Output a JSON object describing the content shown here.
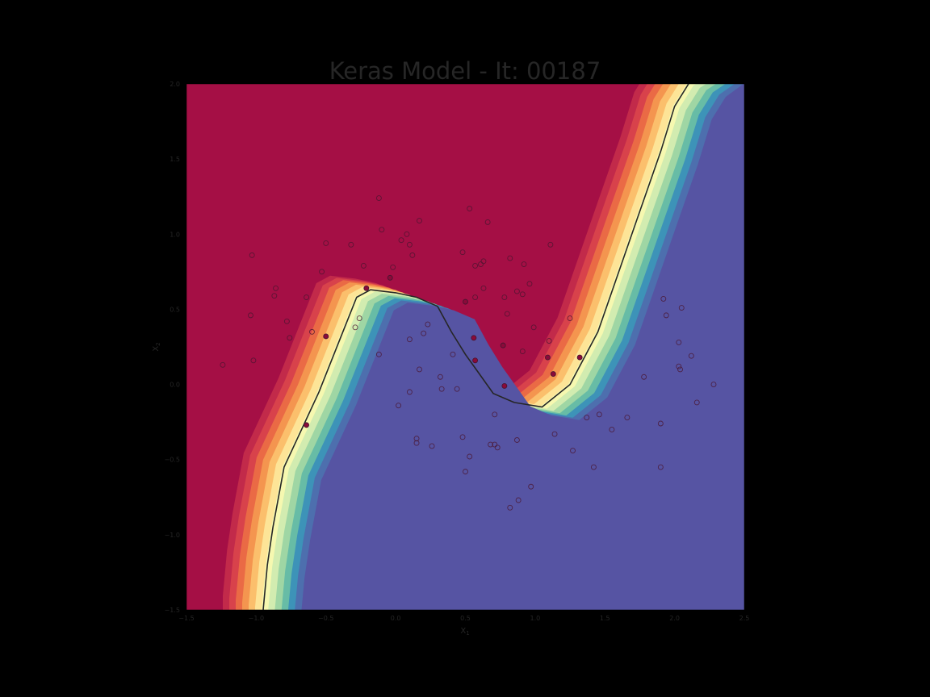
{
  "chart_data": {
    "type": "scatter",
    "title": "Keras Model - It: 00187",
    "xlabel": "X",
    "xlabel_sub": "1",
    "ylabel": "X",
    "ylabel_sub": "2",
    "xlim": [
      -1.5,
      2.5
    ],
    "ylim": [
      -1.5,
      2.0
    ],
    "xticks": [
      "−1.5",
      "−1.0",
      "−0.5",
      "0.0",
      "0.5",
      "1.0",
      "1.5",
      "2.0",
      "2.5"
    ],
    "xtick_values": [
      -1.5,
      -1.0,
      -0.5,
      0.0,
      0.5,
      1.0,
      1.5,
      2.0,
      2.5
    ],
    "yticks": [
      "−1.5",
      "−1.0",
      "−0.5",
      "0.0",
      "0.5",
      "1.0",
      "1.5",
      "2.0"
    ],
    "ytick_values": [
      -1.5,
      -1.0,
      -0.5,
      0.0,
      0.5,
      1.0,
      1.5,
      2.0
    ],
    "grid": false,
    "background_region": "decision-function contour, Spectral colormap (red = class 0, blue = class 1)",
    "colors": {
      "class0_region": "#a50f45",
      "class1_region": "#5654a3",
      "boundary": "#262626",
      "point_edge": "#4a1530",
      "point_fill": "#8b0a3a"
    },
    "decision_boundary": [
      [
        -0.95,
        -1.5
      ],
      [
        -0.92,
        -1.2
      ],
      [
        -0.88,
        -0.95
      ],
      [
        -0.84,
        -0.75
      ],
      [
        -0.8,
        -0.55
      ],
      [
        -0.7,
        -0.35
      ],
      [
        -0.55,
        -0.05
      ],
      [
        -0.4,
        0.3
      ],
      [
        -0.28,
        0.58
      ],
      [
        -0.18,
        0.63
      ],
      [
        0.0,
        0.61
      ],
      [
        0.15,
        0.58
      ],
      [
        0.3,
        0.52
      ],
      [
        0.4,
        0.35
      ],
      [
        0.5,
        0.2
      ],
      [
        0.6,
        0.07
      ],
      [
        0.7,
        -0.06
      ],
      [
        0.85,
        -0.12
      ],
      [
        1.05,
        -0.15
      ],
      [
        1.25,
        0.0
      ],
      [
        1.45,
        0.35
      ],
      [
        1.6,
        0.75
      ],
      [
        1.75,
        1.15
      ],
      [
        1.9,
        1.55
      ],
      [
        2.0,
        1.85
      ],
      [
        2.1,
        2.0
      ]
    ],
    "series": [
      {
        "values_open": [
          [
            -1.24,
            0.13
          ],
          [
            -1.03,
            0.86
          ],
          [
            -1.04,
            0.46
          ],
          [
            -1.02,
            0.16
          ],
          [
            -0.86,
            0.64
          ],
          [
            -0.87,
            0.59
          ],
          [
            -0.78,
            0.42
          ],
          [
            -0.76,
            0.31
          ],
          [
            -0.64,
            0.58
          ],
          [
            -0.6,
            0.35
          ],
          [
            -0.53,
            0.75
          ],
          [
            -0.5,
            0.94
          ],
          [
            -0.32,
            0.93
          ],
          [
            -0.29,
            0.38
          ],
          [
            -0.26,
            0.44
          ],
          [
            -0.23,
            0.79
          ],
          [
            -0.12,
            1.24
          ],
          [
            -0.1,
            1.03
          ],
          [
            -0.02,
            0.78
          ],
          [
            0.04,
            0.96
          ],
          [
            0.08,
            1.0
          ],
          [
            0.1,
            0.93
          ],
          [
            0.12,
            0.86
          ],
          [
            0.17,
            1.09
          ],
          [
            -0.12,
            0.2
          ],
          [
            0.1,
            0.3
          ],
          [
            0.2,
            0.34
          ],
          [
            0.23,
            0.4
          ],
          [
            0.41,
            0.2
          ],
          [
            0.48,
            0.88
          ],
          [
            0.53,
            1.17
          ],
          [
            0.57,
            0.79
          ],
          [
            0.61,
            0.8
          ],
          [
            0.63,
            0.82
          ],
          [
            0.63,
            0.64
          ],
          [
            0.66,
            1.08
          ],
          [
            0.78,
            0.58
          ],
          [
            0.8,
            0.47
          ],
          [
            0.82,
            0.84
          ],
          [
            0.87,
            0.62
          ],
          [
            0.91,
            0.6
          ],
          [
            0.92,
            0.8
          ],
          [
            0.96,
            0.67
          ],
          [
            0.99,
            0.38
          ],
          [
            0.91,
            0.22
          ],
          [
            1.11,
            0.93
          ],
          [
            1.1,
            0.29
          ],
          [
            1.25,
            0.44
          ],
          [
            0.57,
            0.58
          ],
          [
            0.02,
            -0.14
          ],
          [
            0.1,
            -0.05
          ],
          [
            0.15,
            -0.36
          ],
          [
            0.15,
            -0.39
          ],
          [
            0.17,
            0.1
          ],
          [
            0.26,
            -0.41
          ],
          [
            0.32,
            0.05
          ],
          [
            0.33,
            -0.03
          ],
          [
            0.44,
            -0.03
          ],
          [
            0.48,
            -0.35
          ],
          [
            0.5,
            -0.58
          ],
          [
            0.53,
            -0.48
          ],
          [
            0.68,
            -0.4
          ],
          [
            0.71,
            -0.2
          ],
          [
            0.71,
            -0.4
          ],
          [
            0.73,
            -0.42
          ],
          [
            0.82,
            -0.82
          ],
          [
            0.87,
            -0.37
          ],
          [
            0.88,
            -0.77
          ],
          [
            0.97,
            -0.68
          ],
          [
            1.14,
            -0.33
          ],
          [
            1.27,
            -0.44
          ],
          [
            1.37,
            -0.22
          ],
          [
            1.42,
            -0.55
          ],
          [
            1.46,
            -0.2
          ],
          [
            1.55,
            -0.3
          ],
          [
            1.66,
            -0.22
          ],
          [
            1.78,
            0.05
          ],
          [
            1.9,
            -0.26
          ],
          [
            1.9,
            -0.55
          ],
          [
            1.92,
            0.57
          ],
          [
            1.94,
            0.46
          ],
          [
            2.03,
            0.28
          ],
          [
            2.03,
            0.12
          ],
          [
            2.04,
            0.1
          ],
          [
            2.05,
            0.51
          ],
          [
            2.12,
            0.19
          ],
          [
            2.16,
            -0.12
          ],
          [
            2.28,
            0.0
          ]
        ],
        "values_filled": [
          [
            -0.64,
            -0.27
          ],
          [
            -0.5,
            0.32
          ],
          [
            -0.21,
            0.64
          ],
          [
            -0.04,
            0.71
          ],
          [
            0.56,
            0.31
          ],
          [
            0.57,
            0.16
          ],
          [
            0.5,
            0.55
          ],
          [
            0.77,
            0.26
          ],
          [
            0.78,
            -0.01
          ],
          [
            1.09,
            0.18
          ],
          [
            1.13,
            0.07
          ],
          [
            1.32,
            0.18
          ]
        ]
      }
    ]
  }
}
